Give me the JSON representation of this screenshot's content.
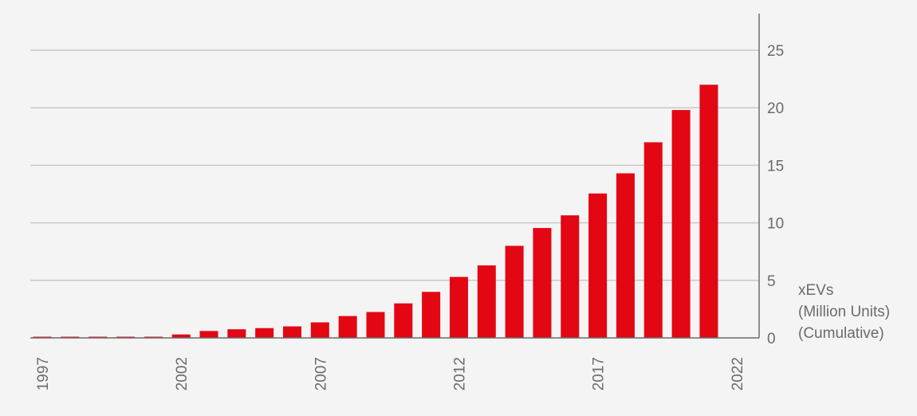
{
  "chart_data": {
    "type": "bar",
    "categories": [
      "1997",
      "1998",
      "1999",
      "2000",
      "2001",
      "2002",
      "2003",
      "2004",
      "2005",
      "2006",
      "2007",
      "2008",
      "2009",
      "2010",
      "2011",
      "2012",
      "2013",
      "2014",
      "2015",
      "2016",
      "2017",
      "2018",
      "2019",
      "2020",
      "2021"
    ],
    "values": [
      0.05,
      0.06,
      0.07,
      0.08,
      0.1,
      0.3,
      0.6,
      0.75,
      0.85,
      1.0,
      1.35,
      1.9,
      2.25,
      3.0,
      4.0,
      5.3,
      6.3,
      8.0,
      9.55,
      10.65,
      12.55,
      14.3,
      17.0,
      19.8,
      22.0
    ],
    "xtick_labels": [
      "1997",
      "2002",
      "2007",
      "2012",
      "2017",
      "2022"
    ],
    "yticks": [
      0,
      5,
      10,
      15,
      20,
      25
    ],
    "ylim": [
      0,
      28
    ],
    "ylabel": [
      "xEVs",
      "(Million Units)",
      "(Cumulative)"
    ],
    "title": "",
    "xlabel": "",
    "grid": true,
    "y_axis_side": "right",
    "colors": {
      "bar": "#e30613",
      "grid": "#c8c8c8",
      "axis": "#6b6b6b",
      "text": "#6b6b6b",
      "background": "#f4f4f4"
    }
  }
}
